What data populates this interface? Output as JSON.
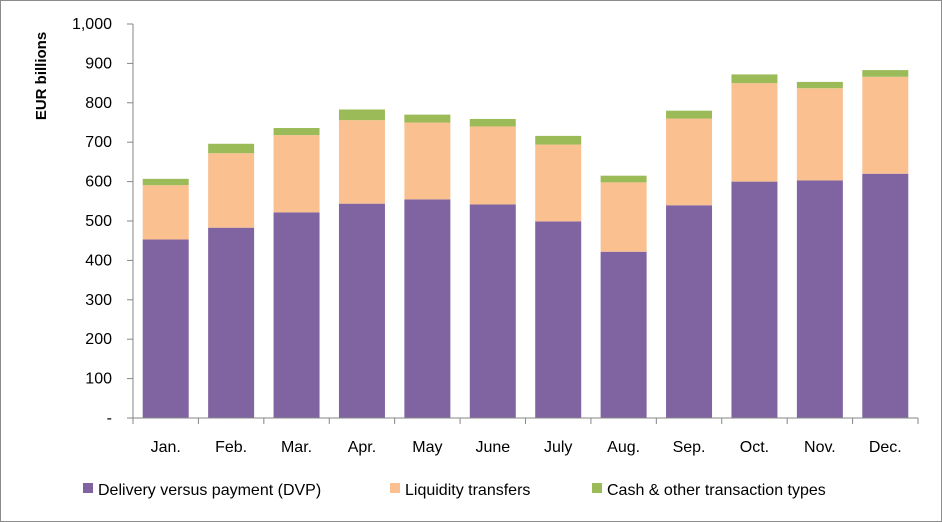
{
  "chart_data": {
    "type": "bar",
    "stacked": true,
    "title": "",
    "xlabel": "",
    "ylabel": "EUR billions",
    "ylim": [
      0,
      1000
    ],
    "yticks": [
      0,
      100,
      200,
      300,
      400,
      500,
      600,
      700,
      800,
      900,
      1000
    ],
    "ytick_labels": [
      "-",
      "100",
      "200",
      "300",
      "400",
      "500",
      "600",
      "700",
      "800",
      "900",
      "1,000"
    ],
    "grid": false,
    "legend_position": "bottom",
    "categories": [
      "Jan.",
      "Feb.",
      "Mar.",
      "Apr.",
      "May",
      "June",
      "July",
      "Aug.",
      "Sep.",
      "Oct.",
      "Nov.",
      "Dec."
    ],
    "series": [
      {
        "name": "Delivery versus payment (DVP)",
        "color": "#8064a2",
        "values": [
          453,
          483,
          522,
          544,
          555,
          542,
          499,
          422,
          540,
          600,
          603,
          620
        ]
      },
      {
        "name": "Liquidity transfers",
        "color": "#fac090",
        "values": [
          138,
          189,
          196,
          212,
          195,
          198,
          195,
          176,
          220,
          250,
          234,
          246
        ]
      },
      {
        "name": "Cash & other transaction types",
        "color": "#9bbb59",
        "values": [
          16,
          24,
          18,
          27,
          20,
          19,
          22,
          17,
          20,
          22,
          16,
          17
        ]
      }
    ]
  }
}
